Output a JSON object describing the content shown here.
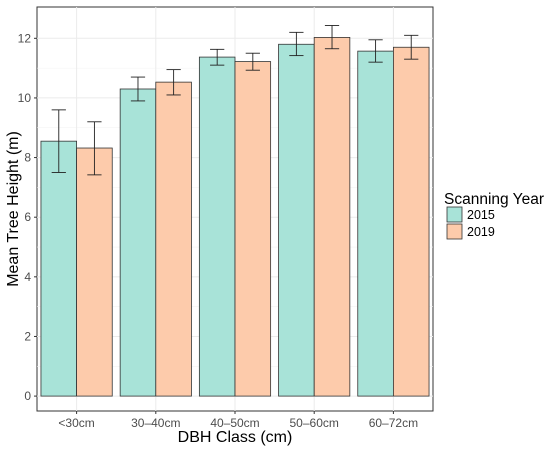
{
  "chart_data": {
    "type": "bar",
    "xlabel": "DBH Class (cm)",
    "ylabel": "Mean Tree Height (m)",
    "categories": [
      "<30cm",
      "30–40cm",
      "40–50cm",
      "50–60cm",
      "60–72cm"
    ],
    "ylim": [
      -0.5,
      13.05
    ],
    "yticks": [
      0,
      2,
      4,
      6,
      8,
      10,
      12
    ],
    "grid": true,
    "legend": {
      "title": "Scanning Year",
      "placement": "right"
    },
    "series": [
      {
        "name": "2015",
        "color": "#a8e3d8",
        "values": [
          8.55,
          10.3,
          11.37,
          11.8,
          11.57
        ],
        "err_low": [
          7.5,
          9.9,
          11.1,
          11.42,
          11.2
        ],
        "err_high": [
          9.6,
          10.7,
          11.63,
          12.2,
          11.95
        ]
      },
      {
        "name": "2019",
        "color": "#fdcbab",
        "values": [
          8.32,
          10.53,
          11.22,
          12.03,
          11.7
        ],
        "err_low": [
          7.42,
          10.1,
          10.93,
          11.65,
          11.3
        ],
        "err_high": [
          9.2,
          10.95,
          11.5,
          12.43,
          12.1
        ]
      }
    ]
  }
}
